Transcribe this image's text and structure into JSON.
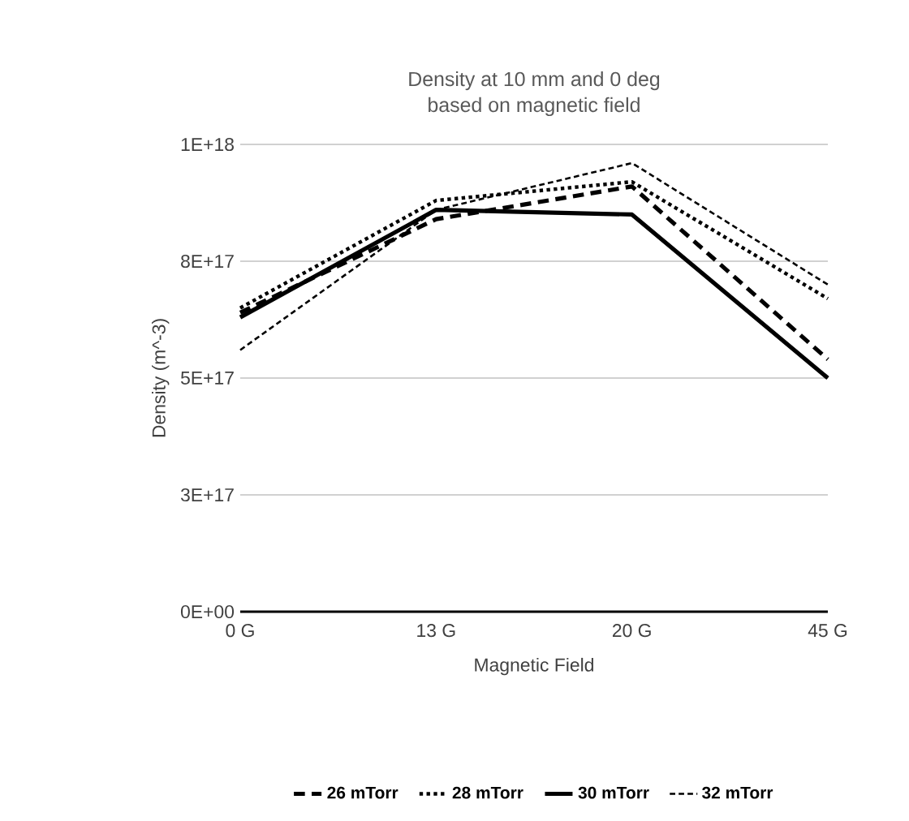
{
  "chart_data": {
    "type": "line",
    "title": "Density at 10 mm and 0 deg",
    "subtitle": "based on magnetic field",
    "xlabel": "Magnetic Field",
    "ylabel": "Density (m^-3)",
    "categories": [
      "0 G",
      "13 G",
      "20 G",
      "45 G"
    ],
    "series": [
      {
        "name": "26 mTorr",
        "color": "#000000",
        "line_style": "dashed",
        "values": [
          6.4e+17,
          8.4e+17,
          9.1e+17,
          5.4e+17
        ]
      },
      {
        "name": "28 mTorr",
        "color": "#000000",
        "line_style": "dotted",
        "values": [
          6.5e+17,
          8.8e+17,
          9.2e+17,
          6.7e+17
        ]
      },
      {
        "name": "30 mTorr",
        "color": "#000000",
        "line_style": "solid",
        "values": [
          6.3e+17,
          8.6e+17,
          8.5e+17,
          5e+17
        ]
      },
      {
        "name": "32 mTorr",
        "color": "#000000",
        "line_style": "dashed",
        "values": [
          5.6e+17,
          8.6e+17,
          9.6e+17,
          7e+17
        ]
      }
    ],
    "ylim": [
      0,
      1e+18
    ],
    "yticks": [
      {
        "value": 0,
        "label": "0E+00"
      },
      {
        "value": 2.5e+17,
        "label": "3E+17"
      },
      {
        "value": 5e+17,
        "label": "5E+17"
      },
      {
        "value": 7.5e+17,
        "label": "8E+17"
      },
      {
        "value": 1e+18,
        "label": "1E+18"
      }
    ],
    "grid": "y",
    "legend": "bottom",
    "marker": "none"
  }
}
